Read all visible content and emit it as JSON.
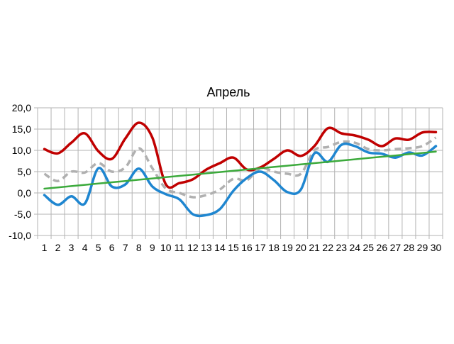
{
  "chart_data": {
    "type": "line",
    "title": "Апрель",
    "xlabel": "",
    "ylabel": "",
    "categories": [
      "1",
      "2",
      "3",
      "4",
      "5",
      "6",
      "7",
      "8",
      "9",
      "10",
      "11",
      "12",
      "13",
      "14",
      "15",
      "16",
      "17",
      "18",
      "19",
      "20",
      "21",
      "22",
      "23",
      "24",
      "25",
      "26",
      "27",
      "28",
      "29",
      "30"
    ],
    "y_tick_labels": [
      "20,0",
      "15,0",
      "10,0",
      "5,0",
      "0,0",
      "-5,0",
      "-10,0"
    ],
    "ylim": [
      -10,
      20
    ],
    "grid": true,
    "legend": "none",
    "series": [
      {
        "color": "#c00000",
        "style": "solid",
        "smooth": true,
        "values": [
          10.3,
          9.3,
          11.8,
          14.0,
          9.8,
          8.0,
          12.8,
          16.5,
          13.0,
          2.0,
          2.3,
          3.2,
          5.5,
          7.0,
          8.3,
          5.5,
          6.0,
          8.0,
          10.0,
          8.7,
          11.0,
          15.2,
          14.0,
          13.5,
          12.5,
          11.0,
          12.8,
          12.5,
          14.2,
          14.3
        ]
      },
      {
        "color": "#b0b0b0",
        "style": "dashed",
        "smooth": true,
        "values": [
          4.5,
          2.8,
          5.0,
          4.8,
          7.0,
          5.0,
          6.0,
          10.5,
          5.8,
          1.0,
          0.0,
          -1.0,
          -0.5,
          0.8,
          3.3,
          3.0,
          5.8,
          5.0,
          4.5,
          4.5,
          10.0,
          10.8,
          12.0,
          11.8,
          10.3,
          10.0,
          10.3,
          10.5,
          11.0,
          13.0
        ]
      },
      {
        "color": "#1f86d0",
        "style": "solid",
        "smooth": true,
        "values": [
          -0.5,
          -2.8,
          -0.8,
          -2.5,
          5.8,
          1.5,
          2.0,
          5.7,
          1.5,
          -0.3,
          -1.5,
          -5.0,
          -5.2,
          -3.8,
          0.5,
          3.5,
          5.0,
          3.0,
          0.2,
          0.8,
          9.3,
          7.3,
          11.3,
          11.0,
          9.5,
          9.2,
          8.3,
          9.5,
          8.8,
          11.0
        ]
      },
      {
        "color": "#3caa3c",
        "style": "solid",
        "smooth": false,
        "values": [
          1.0,
          1.3,
          1.6,
          1.9,
          2.2,
          2.5,
          2.8,
          3.1,
          3.4,
          3.7,
          4.0,
          4.3,
          4.6,
          4.9,
          5.2,
          5.5,
          5.8,
          6.1,
          6.4,
          6.7,
          7.0,
          7.3,
          7.6,
          7.9,
          8.2,
          8.5,
          8.8,
          9.1,
          9.4,
          9.7
        ]
      }
    ]
  }
}
